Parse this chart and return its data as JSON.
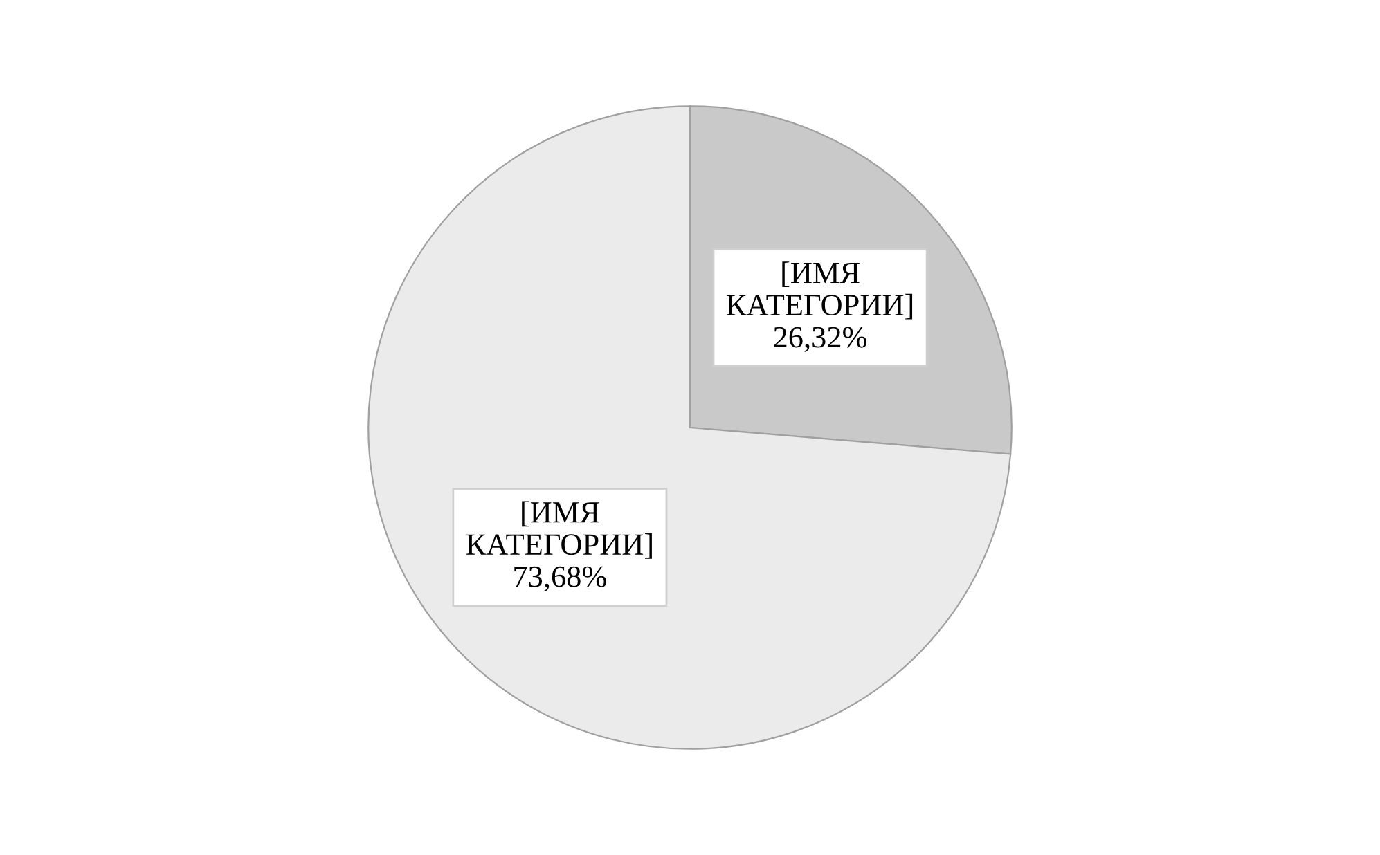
{
  "chart_data": {
    "type": "pie",
    "categories": [
      "[ИМЯ КАТЕГОРИИ]",
      "[ИМЯ КАТЕГОРИИ]"
    ],
    "values": [
      26.32,
      73.68
    ],
    "value_labels": [
      "26,32%",
      "73,68%"
    ],
    "colors": [
      "#c9c9c9",
      "#ebebeb"
    ],
    "legend": false
  }
}
